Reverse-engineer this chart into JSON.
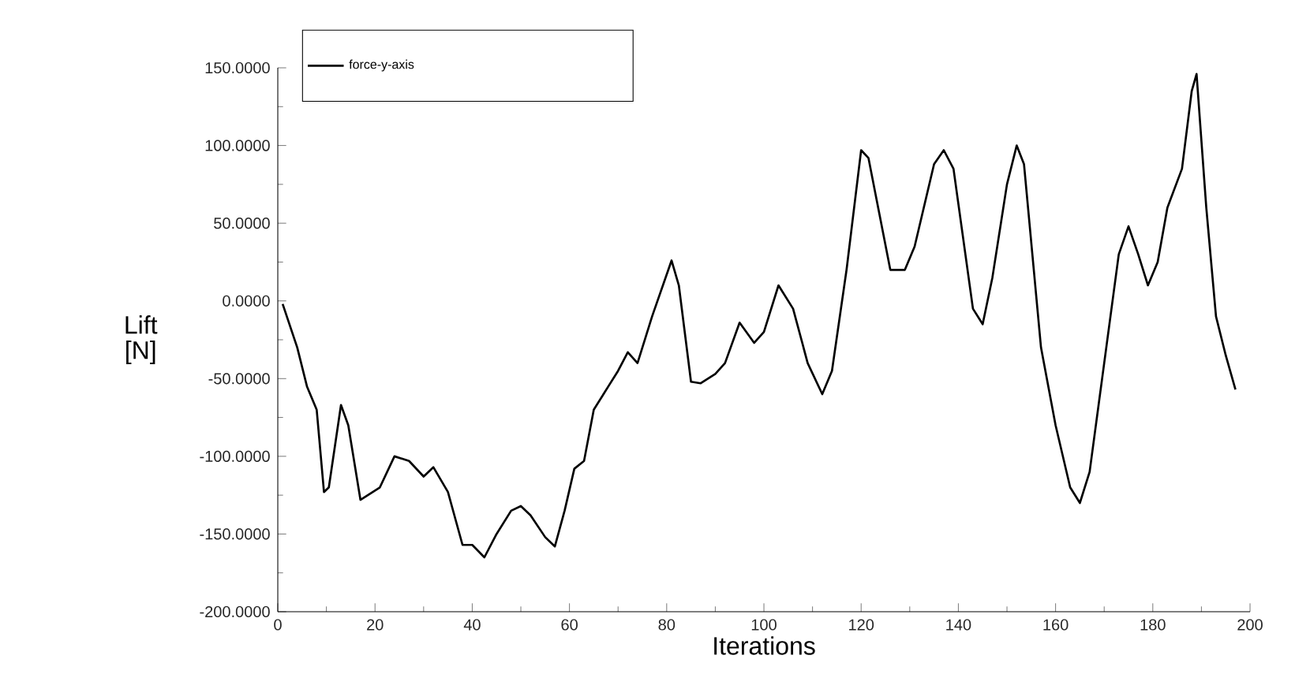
{
  "chart_data": {
    "type": "line",
    "xlabel": "Iterations",
    "ylabel": "Lift [N]",
    "xlim": [
      0,
      200
    ],
    "xticks": [
      0,
      20,
      40,
      60,
      80,
      100,
      120,
      140,
      160,
      180,
      200
    ],
    "ylim": [
      -200,
      150
    ],
    "yticks": [
      {
        "value": -200,
        "label": "-200.0000"
      },
      {
        "value": -150,
        "label": "-150.0000"
      },
      {
        "value": -100,
        "label": "-100.0000"
      },
      {
        "value": -50,
        "label": "-50.0000"
      },
      {
        "value": 0,
        "label": "0.0000"
      },
      {
        "value": 50,
        "label": "50.0000"
      },
      {
        "value": 100,
        "label": "100.0000"
      },
      {
        "value": 150,
        "label": "150.0000"
      }
    ],
    "legend": "top left",
    "grid": false,
    "marker": "none",
    "line_style": "solid",
    "series": [
      {
        "name": "force-y-axis",
        "color": "#000000",
        "x": [
          1,
          4,
          6,
          8,
          9.5,
          10.5,
          13,
          14.5,
          17,
          19,
          21,
          24,
          27,
          30,
          32,
          35,
          38,
          40,
          42.5,
          45,
          48,
          50,
          52,
          55,
          57,
          59,
          61,
          63,
          65,
          68,
          70,
          72,
          74,
          77,
          81,
          82.5,
          85,
          87,
          90,
          92,
          95,
          98,
          100,
          103,
          106,
          109,
          112,
          114,
          117,
          120,
          121.5,
          126,
          129,
          131,
          135,
          137,
          139,
          143,
          145,
          147,
          150,
          152,
          153.5,
          157,
          160,
          163,
          165,
          167,
          170,
          173,
          175,
          177,
          179,
          181,
          183,
          186,
          188,
          189,
          191,
          193,
          195,
          197
        ],
        "values": [
          -2,
          -30,
          -55,
          -70,
          -123,
          -120,
          -67,
          -80,
          -128,
          -124,
          -120,
          -100,
          -103,
          -113,
          -107,
          -123,
          -157,
          -157,
          -165,
          -150,
          -135,
          -132,
          -138,
          -152,
          -158,
          -135,
          -108,
          -103,
          -70,
          -55,
          -45,
          -33,
          -40,
          -10,
          26,
          10,
          -52,
          -53,
          -47,
          -40,
          -14,
          -27,
          -20,
          10,
          -5,
          -40,
          -60,
          -45,
          20,
          97,
          92,
          20,
          20,
          35,
          88,
          97,
          85,
          -5,
          -15,
          15,
          75,
          100,
          88,
          -30,
          -80,
          -120,
          -130,
          -110,
          -40,
          30,
          48,
          30,
          10,
          25,
          60,
          85,
          135,
          146,
          60,
          -10,
          -35,
          -57
        ]
      }
    ]
  }
}
